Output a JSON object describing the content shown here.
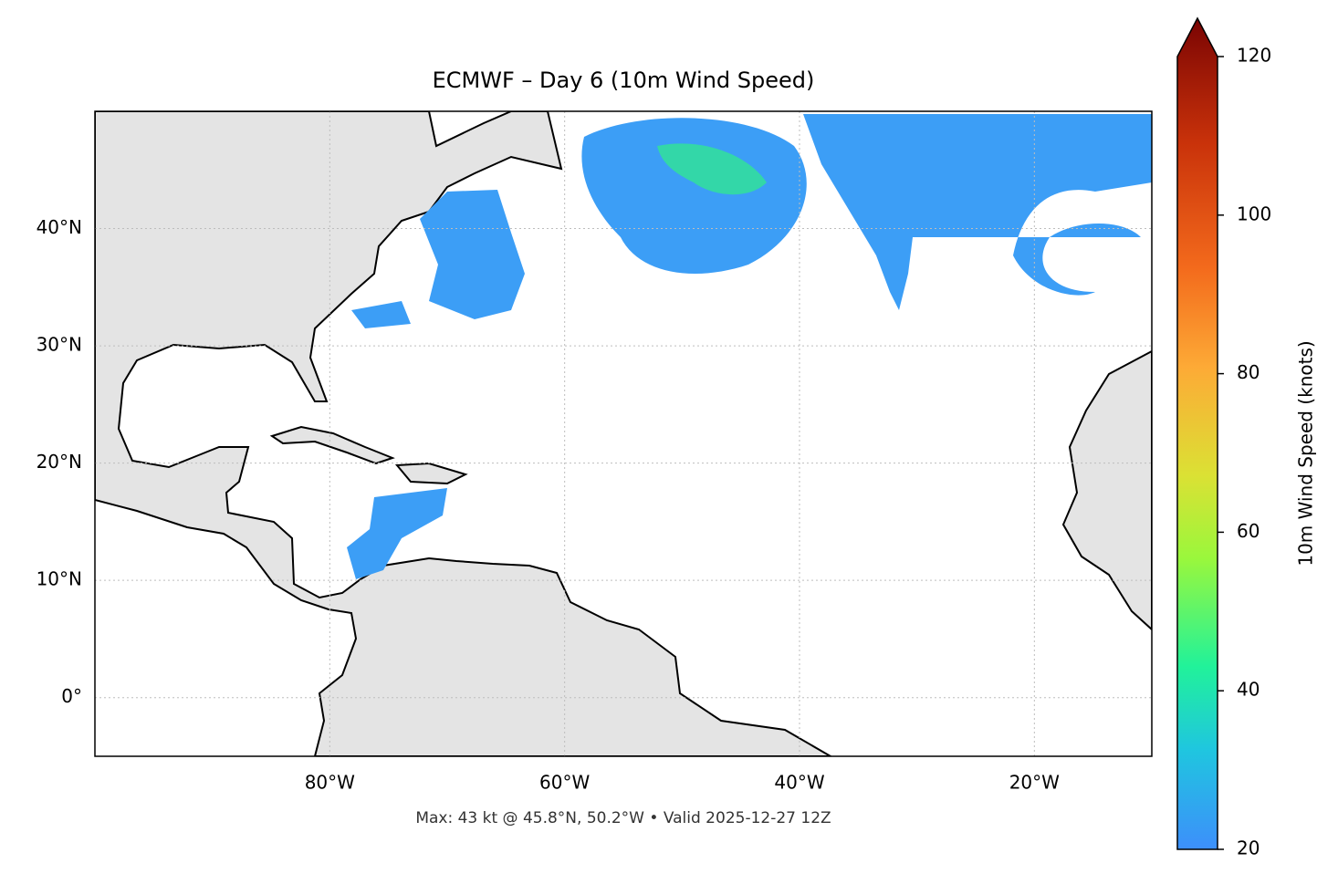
{
  "chart_data": {
    "type": "map",
    "title": "ECMWF – Day 6 (10m Wind Speed)",
    "caption": "Max: 43 kt @ 45.8°N, 50.2°W • Valid 2025-12-27 12Z",
    "xlim": [
      -100,
      -10
    ],
    "ylim": [
      -5,
      50
    ],
    "xticks": [
      {
        "value": -80,
        "label": "80°W"
      },
      {
        "value": -60,
        "label": "60°W"
      },
      {
        "value": -40,
        "label": "40°W"
      },
      {
        "value": -20,
        "label": "20°W"
      }
    ],
    "yticks": [
      {
        "value": 0,
        "label": "0°"
      },
      {
        "value": 10,
        "label": "10°N"
      },
      {
        "value": 20,
        "label": "20°N"
      },
      {
        "value": 30,
        "label": "30°N"
      },
      {
        "value": 40,
        "label": "40°N"
      }
    ],
    "grid": true,
    "colorbar": {
      "label": "10m Wind Speed (knots)",
      "lim": [
        20,
        120
      ],
      "ticks": [
        20,
        40,
        60,
        80,
        100,
        120
      ]
    }
  }
}
